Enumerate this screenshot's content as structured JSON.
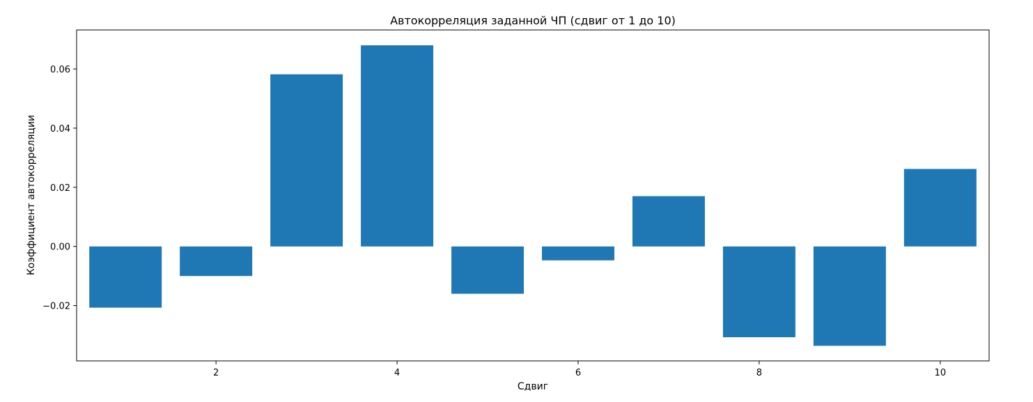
{
  "chart_data": {
    "type": "bar",
    "title": "Автокорреляция заданной ЧП (сдвиг от 1 до 10)",
    "xlabel": "Сдвиг",
    "ylabel": "Коэффициент автокорреляции",
    "categories": [
      1,
      2,
      3,
      4,
      5,
      6,
      7,
      8,
      9,
      10
    ],
    "values": [
      -0.0207,
      -0.01,
      0.0582,
      0.068,
      -0.016,
      -0.0047,
      0.017,
      -0.0307,
      -0.0336,
      0.0262
    ],
    "xlim": [
      0.46,
      10.54
    ],
    "ylim": [
      -0.0387,
      0.0732
    ],
    "xticks": [
      2,
      4,
      6,
      8,
      10
    ],
    "xtick_labels": [
      "2",
      "4",
      "6",
      "8",
      "10"
    ],
    "yticks": [
      -0.02,
      0.0,
      0.02,
      0.04,
      0.06
    ],
    "ytick_labels": [
      "−0.02",
      "0.00",
      "0.02",
      "0.04",
      "0.06"
    ],
    "bar_width": 0.8,
    "bar_color": "#1f77b4",
    "grid": false
  }
}
